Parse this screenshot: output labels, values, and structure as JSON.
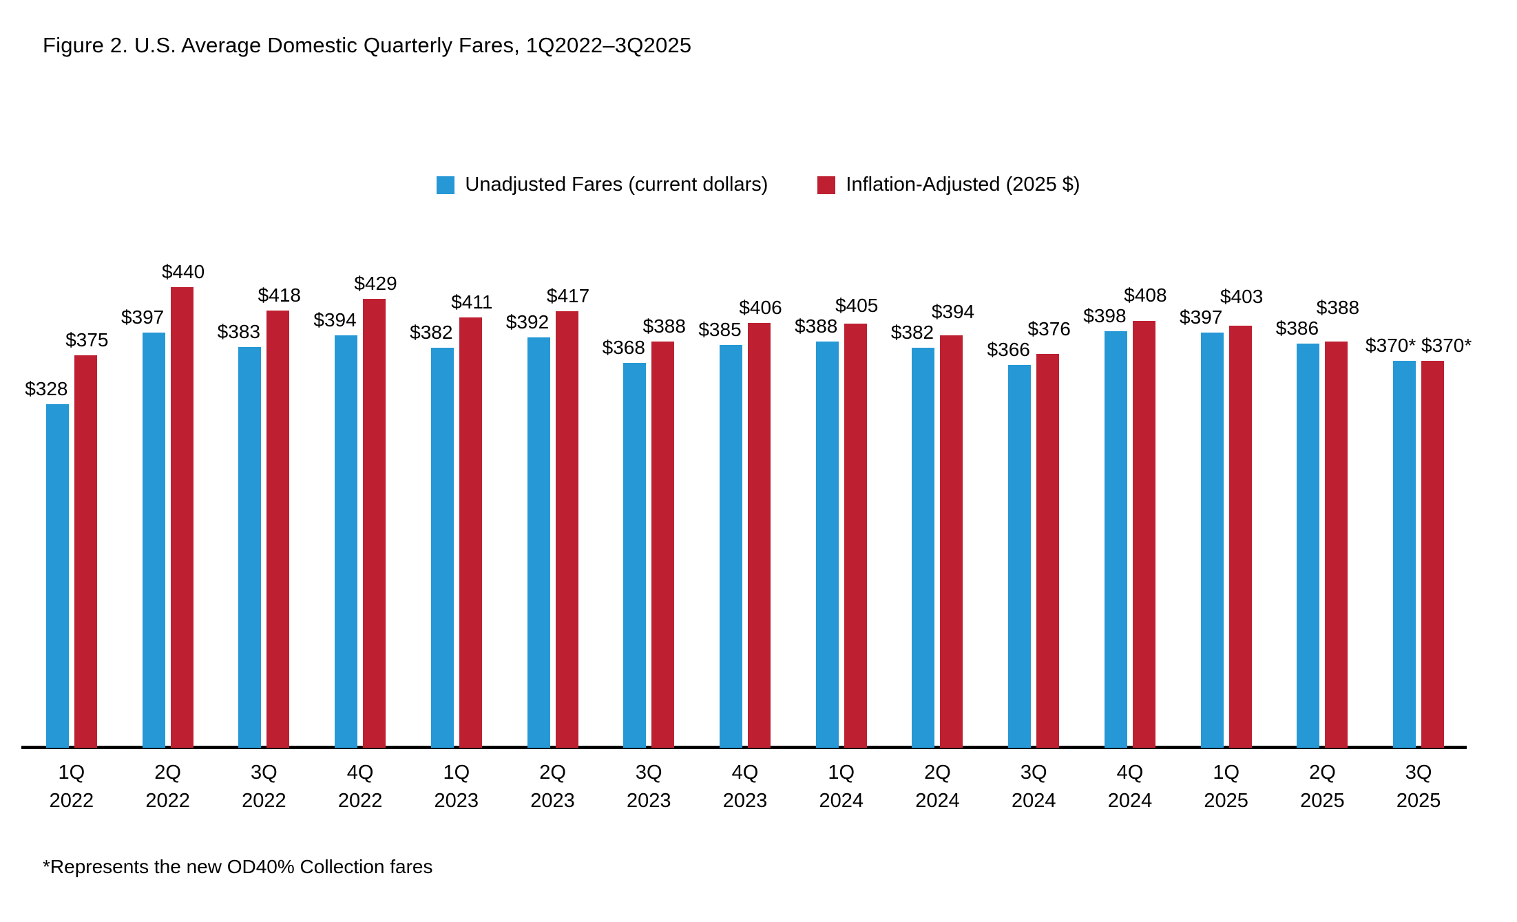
{
  "chart_data": {
    "type": "bar",
    "title": "Figure 2. U.S. Average Domestic Quarterly Fares, 1Q2022–3Q2025",
    "footnote": "*Represents the new OD40% Collection fares",
    "xlabel": "",
    "ylabel": "",
    "ylim": [
      0,
      460
    ],
    "grid": false,
    "legend_position": "top-center",
    "value_label_position": "outside-end",
    "categories": [
      {
        "quarter": "1Q",
        "year": "2022"
      },
      {
        "quarter": "2Q",
        "year": "2022"
      },
      {
        "quarter": "3Q",
        "year": "2022"
      },
      {
        "quarter": "4Q",
        "year": "2022"
      },
      {
        "quarter": "1Q",
        "year": "2023"
      },
      {
        "quarter": "2Q",
        "year": "2023"
      },
      {
        "quarter": "3Q",
        "year": "2023"
      },
      {
        "quarter": "4Q",
        "year": "2023"
      },
      {
        "quarter": "1Q",
        "year": "2024"
      },
      {
        "quarter": "2Q",
        "year": "2024"
      },
      {
        "quarter": "3Q",
        "year": "2024"
      },
      {
        "quarter": "4Q",
        "year": "2024"
      },
      {
        "quarter": "1Q",
        "year": "2025"
      },
      {
        "quarter": "2Q",
        "year": "2025"
      },
      {
        "quarter": "3Q",
        "year": "2025"
      }
    ],
    "series": [
      {
        "name": "Unadjusted Fares (current dollars)",
        "color": "#2598D5",
        "values": [
          328,
          397,
          383,
          394,
          382,
          392,
          368,
          385,
          388,
          382,
          366,
          398,
          397,
          386,
          370
        ],
        "labels": [
          "$328",
          "$397",
          "$383",
          "$394",
          "$382",
          "$392",
          "$368",
          "$385",
          "$388",
          "$382",
          "$366",
          "$398",
          "$397",
          "$386",
          "$370*"
        ]
      },
      {
        "name": "Inflation-Adjusted (2025 $)",
        "color": "#BE2031",
        "values": [
          375,
          440,
          418,
          429,
          411,
          417,
          388,
          406,
          405,
          394,
          376,
          408,
          403,
          388,
          370
        ],
        "labels": [
          "$375",
          "$440",
          "$418",
          "$429",
          "$411",
          "$417",
          "$388",
          "$406",
          "$405",
          "$394",
          "$376",
          "$408",
          "$403",
          "$388",
          "$370*"
        ]
      }
    ]
  }
}
